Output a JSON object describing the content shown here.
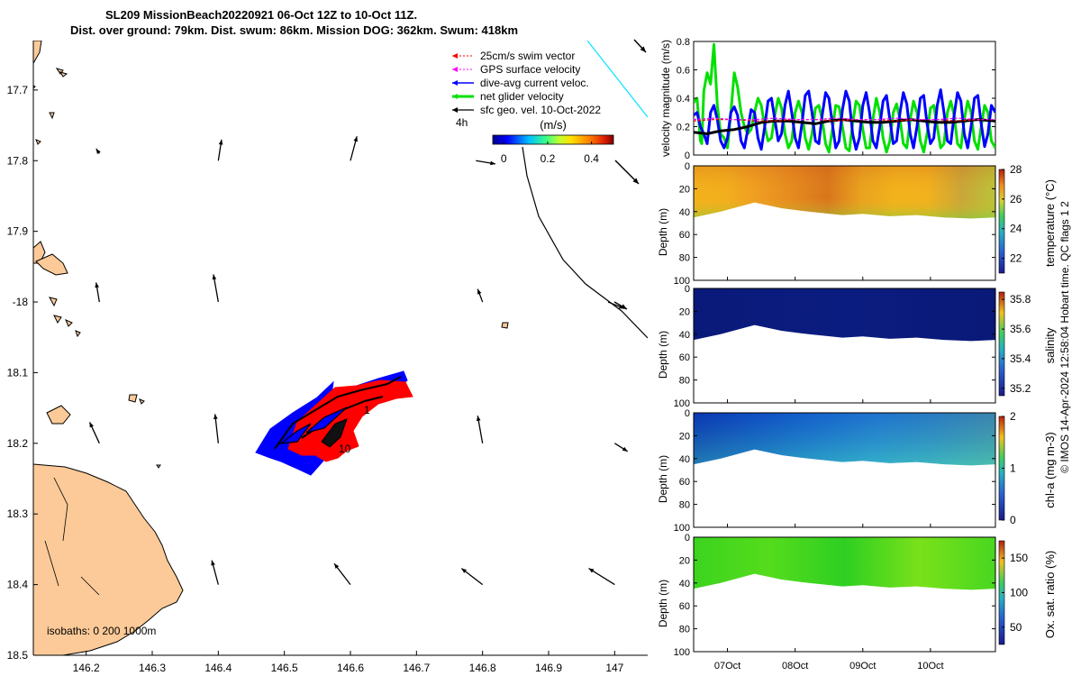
{
  "header": {
    "line1": "SL209 MissionBeach20220921 06-Oct 12Z to 10-Oct 11Z.",
    "line2": "Dist. over ground: 79km. Dist. swum: 86km. Mission DOG: 362km. Swum: 418km"
  },
  "footer_note": "© IMOS 14-Apr-2024 12:58:04 Hobart time. QC flags 1  2",
  "colors": {
    "land": "#fbca98",
    "swim_vector": "#ff0000",
    "gps_velocity": "#ff00ff",
    "dive_avg": "#0000ff",
    "net_velocity": "#00e000",
    "sfc_geo": "#000000",
    "cyan_line": "#00e5ff"
  },
  "chart_data": [
    {
      "type": "scatter",
      "panel": "track_map",
      "xlim": [
        146.12,
        147.05
      ],
      "ylim": [
        18.5,
        17.63
      ],
      "xticks": [
        146.2,
        146.3,
        146.4,
        146.5,
        146.6,
        146.7,
        146.8,
        146.9,
        147
      ],
      "xtick_labels": [
        "146.2",
        "146.3",
        "146.4",
        "146.5",
        "146.6",
        "146.7",
        "146.8",
        "146.9",
        "147"
      ],
      "yticks": [
        17.7,
        17.8,
        17.9,
        18.0,
        18.1,
        18.2,
        18.3,
        18.4,
        18.5
      ],
      "ytick_labels": [
        "17.7",
        "17.8",
        "17.9",
        "-18",
        "18.1",
        "18.2",
        "18.3",
        "18.4",
        "18.5"
      ],
      "legend": {
        "placement": "top-right",
        "entries": [
          "25cm/s swim vector",
          "GPS surface velocity",
          "dive-avg current veloc.",
          "net glider velocity",
          "sfc geo. vel. 10-Oct-2022"
        ]
      },
      "time_label": "4h",
      "colorbar": {
        "label": "(m/s)",
        "ticks": [
          0,
          0.2,
          0.4
        ],
        "tick_labels": [
          "0",
          "0.2",
          "0.4"
        ],
        "range": [
          -0.05,
          0.5
        ]
      },
      "isobaths_label": "isobaths: 0   200  1000m",
      "track_day_labels": [
        "1",
        "10"
      ],
      "geo_vectors": [
        {
          "lon": 146.22,
          "lat": 17.79,
          "u": -0.02,
          "v": 0.03
        },
        {
          "lon": 146.4,
          "lat": 17.8,
          "u": 0.02,
          "v": 0.13
        },
        {
          "lon": 146.6,
          "lat": 17.8,
          "u": 0.04,
          "v": 0.15
        },
        {
          "lon": 146.79,
          "lat": 17.8,
          "u": 0.12,
          "v": -0.02
        },
        {
          "lon": 146.22,
          "lat": 18.0,
          "u": -0.02,
          "v": 0.12
        },
        {
          "lon": 146.4,
          "lat": 18.0,
          "u": -0.03,
          "v": 0.17
        },
        {
          "lon": 146.8,
          "lat": 18.0,
          "u": -0.03,
          "v": 0.08
        },
        {
          "lon": 146.99,
          "lat": 18.0,
          "u": 0.1,
          "v": -0.04
        },
        {
          "lon": 146.22,
          "lat": 18.2,
          "u": -0.06,
          "v": 0.13
        },
        {
          "lon": 146.4,
          "lat": 18.2,
          "u": -0.02,
          "v": 0.18
        },
        {
          "lon": 146.8,
          "lat": 18.2,
          "u": -0.03,
          "v": 0.17
        },
        {
          "lon": 147.0,
          "lat": 18.2,
          "u": 0.08,
          "v": -0.05
        },
        {
          "lon": 146.4,
          "lat": 18.4,
          "u": -0.04,
          "v": 0.15
        },
        {
          "lon": 146.6,
          "lat": 18.4,
          "u": -0.1,
          "v": 0.13
        },
        {
          "lon": 146.8,
          "lat": 18.4,
          "u": -0.13,
          "v": 0.1
        },
        {
          "lon": 147.0,
          "lat": 18.4,
          "u": -0.16,
          "v": 0.1
        }
      ]
    },
    {
      "type": "line",
      "panel": "velocity",
      "ylabel": "velocity magnitude (m/s)",
      "ylim": [
        0,
        0.8
      ],
      "yticks": [
        0,
        0.2,
        0.4,
        0.6,
        0.8
      ],
      "ytick_labels": [
        "0",
        "0.2",
        "0.4",
        "0.6",
        "0.8"
      ],
      "xlim": [
        6.5,
        10.96
      ],
      "series": [
        {
          "color": "#00e000",
          "x": [
            6.5,
            6.55,
            6.6,
            6.62,
            6.65,
            6.7,
            6.75,
            6.8,
            6.85,
            6.9,
            6.95,
            7.0,
            7.05,
            7.1,
            7.15,
            7.2,
            7.25,
            7.3,
            7.35,
            7.4,
            7.45,
            7.5,
            7.55,
            7.6,
            7.65,
            7.7,
            7.75,
            7.8,
            7.85,
            7.9,
            7.95,
            8.0,
            8.05,
            8.1,
            8.15,
            8.2,
            8.25,
            8.3,
            8.35,
            8.4,
            8.45,
            8.5,
            8.55,
            8.6,
            8.65,
            8.7,
            8.75,
            8.8,
            8.85,
            8.9,
            8.95,
            9.0,
            9.05,
            9.1,
            9.15,
            9.2,
            9.25,
            9.3,
            9.35,
            9.4,
            9.45,
            9.5,
            9.55,
            9.6,
            9.65,
            9.7,
            9.75,
            9.8,
            9.85,
            9.9,
            9.95,
            10.0,
            10.05,
            10.1,
            10.15,
            10.2,
            10.25,
            10.3,
            10.35,
            10.4,
            10.45,
            10.5,
            10.55,
            10.6,
            10.65,
            10.7,
            10.75,
            10.8,
            10.85,
            10.9,
            10.96
          ],
          "y": [
            0.37,
            0.4,
            0.1,
            0.08,
            0.45,
            0.58,
            0.5,
            0.78,
            0.35,
            0.15,
            0.12,
            0.05,
            0.3,
            0.58,
            0.48,
            0.3,
            0.2,
            0.15,
            0.18,
            0.3,
            0.4,
            0.35,
            0.2,
            0.1,
            0.12,
            0.28,
            0.4,
            0.33,
            0.15,
            0.05,
            0.1,
            0.3,
            0.38,
            0.3,
            0.12,
            0.04,
            0.15,
            0.33,
            0.35,
            0.25,
            0.08,
            0.02,
            0.18,
            0.35,
            0.34,
            0.2,
            0.05,
            0.03,
            0.22,
            0.38,
            0.35,
            0.18,
            0.05,
            0.05,
            0.25,
            0.4,
            0.3,
            0.12,
            0.02,
            0.1,
            0.3,
            0.36,
            0.25,
            0.08,
            0.05,
            0.25,
            0.38,
            0.3,
            0.1,
            0.02,
            0.15,
            0.33,
            0.35,
            0.2,
            0.05,
            0.08,
            0.3,
            0.38,
            0.28,
            0.08,
            0.05,
            0.25,
            0.38,
            0.3,
            0.1,
            0.04,
            0.2,
            0.35,
            0.3,
            0.1,
            0.05
          ]
        },
        {
          "color": "#0000ff",
          "x": [
            6.5,
            6.55,
            6.6,
            6.65,
            6.7,
            6.75,
            6.8,
            6.85,
            6.9,
            6.95,
            7.0,
            7.05,
            7.1,
            7.15,
            7.2,
            7.25,
            7.3,
            7.35,
            7.4,
            7.45,
            7.5,
            7.55,
            7.6,
            7.65,
            7.7,
            7.75,
            7.8,
            7.85,
            7.9,
            7.95,
            8.0,
            8.05,
            8.1,
            8.15,
            8.2,
            8.25,
            8.3,
            8.35,
            8.4,
            8.45,
            8.5,
            8.55,
            8.6,
            8.65,
            8.7,
            8.75,
            8.8,
            8.85,
            8.9,
            8.95,
            9.0,
            9.05,
            9.1,
            9.15,
            9.2,
            9.25,
            9.3,
            9.35,
            9.4,
            9.45,
            9.5,
            9.55,
            9.6,
            9.65,
            9.7,
            9.75,
            9.8,
            9.85,
            9.9,
            9.95,
            10.0,
            10.05,
            10.1,
            10.15,
            10.2,
            10.25,
            10.3,
            10.35,
            10.4,
            10.45,
            10.5,
            10.55,
            10.6,
            10.65,
            10.7,
            10.75,
            10.8,
            10.85,
            10.9,
            10.96
          ],
          "y": [
            0.28,
            0.3,
            0.2,
            0.15,
            0.08,
            0.3,
            0.35,
            0.25,
            0.1,
            0.05,
            0.12,
            0.3,
            0.34,
            0.28,
            0.1,
            0.05,
            0.18,
            0.32,
            0.3,
            0.12,
            0.04,
            0.2,
            0.38,
            0.4,
            0.25,
            0.1,
            0.15,
            0.35,
            0.45,
            0.3,
            0.12,
            0.05,
            0.22,
            0.42,
            0.45,
            0.3,
            0.1,
            0.08,
            0.28,
            0.44,
            0.4,
            0.22,
            0.05,
            0.1,
            0.32,
            0.45,
            0.38,
            0.15,
            0.04,
            0.12,
            0.35,
            0.44,
            0.3,
            0.1,
            0.05,
            0.2,
            0.38,
            0.42,
            0.25,
            0.08,
            0.1,
            0.3,
            0.44,
            0.36,
            0.15,
            0.05,
            0.2,
            0.4,
            0.42,
            0.22,
            0.08,
            0.12,
            0.35,
            0.46,
            0.3,
            0.1,
            0.08,
            0.28,
            0.44,
            0.38,
            0.15,
            0.05,
            0.2,
            0.4,
            0.42,
            0.22,
            0.06,
            0.15,
            0.35,
            0.3
          ]
        },
        {
          "color": "#000000",
          "x": [
            6.5,
            6.7,
            6.9,
            7.1,
            7.3,
            7.5,
            7.7,
            7.9,
            8.1,
            8.3,
            8.5,
            8.7,
            8.9,
            9.1,
            9.3,
            9.5,
            9.7,
            9.9,
            10.1,
            10.3,
            10.5,
            10.7,
            10.96
          ],
          "y": [
            0.16,
            0.15,
            0.17,
            0.18,
            0.2,
            0.23,
            0.24,
            0.24,
            0.23,
            0.22,
            0.24,
            0.25,
            0.24,
            0.23,
            0.23,
            0.24,
            0.25,
            0.24,
            0.23,
            0.23,
            0.24,
            0.25,
            0.24
          ]
        },
        {
          "color": "#ff0000",
          "x": [
            6.5,
            6.8,
            7.1,
            7.4,
            7.7,
            8.0,
            8.3,
            8.6,
            8.9,
            9.2,
            9.5,
            9.8,
            10.1,
            10.4,
            10.7,
            10.96
          ],
          "y": [
            0.24,
            0.25,
            0.25,
            0.24,
            0.24,
            0.25,
            0.25,
            0.24,
            0.25,
            0.25,
            0.24,
            0.25,
            0.25,
            0.24,
            0.25,
            0.25
          ]
        },
        {
          "color": "#ff00ff",
          "x": [
            6.5,
            6.8,
            7.1,
            7.4,
            7.7,
            8.0,
            8.3,
            8.6,
            8.9,
            9.2,
            9.5,
            9.8,
            10.1,
            10.4,
            10.7,
            10.96
          ],
          "y": [
            0.25,
            0.26,
            0.25,
            0.25,
            0.26,
            0.25,
            0.25,
            0.26,
            0.25,
            0.25,
            0.26,
            0.25,
            0.25,
            0.26,
            0.25,
            0.25
          ]
        }
      ]
    },
    {
      "type": "heatmap",
      "panel": "temperature",
      "ylabel": "Depth (m)",
      "ylim": [
        100,
        0
      ],
      "yticks": [
        0,
        20,
        40,
        60,
        80,
        100
      ],
      "colorbar_label": "temperature (°C)",
      "clim": [
        21,
        28
      ],
      "cticks": [
        22,
        24,
        26,
        28
      ],
      "bottom_depth": [
        [
          6.5,
          45
        ],
        [
          6.9,
          40
        ],
        [
          7.4,
          32
        ],
        [
          7.8,
          37
        ],
        [
          8.2,
          40
        ],
        [
          8.7,
          43
        ],
        [
          9.0,
          42
        ],
        [
          9.4,
          44
        ],
        [
          9.8,
          43
        ],
        [
          10.2,
          45
        ],
        [
          10.6,
          46
        ],
        [
          10.96,
          45
        ]
      ],
      "colors": [
        "#f2b21c",
        "#f3ae1d",
        "#ee9b22",
        "#e4881f",
        "#d8741c",
        "#e9a21f",
        "#f2b31c",
        "#f2b11e",
        "#c8a63a",
        "#b8c53a"
      ]
    },
    {
      "type": "heatmap",
      "panel": "salinity",
      "ylabel": "Depth (m)",
      "ylim": [
        100,
        0
      ],
      "yticks": [
        0,
        20,
        40,
        60,
        80,
        100
      ],
      "colorbar_label": "salinity",
      "clim": [
        35.15,
        35.85
      ],
      "cticks": [
        35.2,
        35.4,
        35.6,
        35.8
      ],
      "bottom_depth": [
        [
          6.5,
          45
        ],
        [
          6.9,
          40
        ],
        [
          7.4,
          32
        ],
        [
          7.8,
          37
        ],
        [
          8.2,
          40
        ],
        [
          8.7,
          43
        ],
        [
          9.0,
          42
        ],
        [
          9.4,
          44
        ],
        [
          9.8,
          43
        ],
        [
          10.2,
          45
        ],
        [
          10.6,
          46
        ],
        [
          10.96,
          45
        ]
      ],
      "colors": [
        "#0a1a7a",
        "#0b1c80",
        "#0a1978"
      ]
    },
    {
      "type": "heatmap",
      "panel": "chla",
      "ylabel": "Depth (m)",
      "ylim": [
        100,
        0
      ],
      "yticks": [
        0,
        20,
        40,
        60,
        80,
        100
      ],
      "colorbar_label": "chl-a (mg m-3)",
      "clim": [
        0,
        2
      ],
      "cticks": [
        0,
        1,
        2
      ],
      "bottom_depth": [
        [
          6.5,
          45
        ],
        [
          6.9,
          40
        ],
        [
          7.4,
          32
        ],
        [
          7.8,
          37
        ],
        [
          8.2,
          40
        ],
        [
          8.7,
          43
        ],
        [
          9.0,
          42
        ],
        [
          9.4,
          44
        ],
        [
          9.8,
          43
        ],
        [
          10.2,
          45
        ],
        [
          10.6,
          46
        ],
        [
          10.96,
          45
        ]
      ],
      "colors": [
        "#0b3fc0",
        "#1060d8",
        "#1a80e6",
        "#2a9bea",
        "#3aa7d8",
        "#54b4b8"
      ]
    },
    {
      "type": "heatmap",
      "panel": "oxygen",
      "ylabel": "Depth (m)",
      "ylim": [
        100,
        0
      ],
      "yticks": [
        0,
        20,
        40,
        60,
        80,
        100
      ],
      "colorbar_label": "Ox. sat. ratio (%)",
      "clim": [
        25,
        175
      ],
      "cticks": [
        50,
        100,
        150
      ],
      "bottom_depth": [
        [
          6.5,
          45
        ],
        [
          6.9,
          40
        ],
        [
          7.4,
          32
        ],
        [
          7.8,
          37
        ],
        [
          8.2,
          40
        ],
        [
          8.7,
          43
        ],
        [
          9.0,
          42
        ],
        [
          9.4,
          44
        ],
        [
          9.8,
          43
        ],
        [
          10.2,
          45
        ],
        [
          10.6,
          46
        ],
        [
          10.96,
          45
        ]
      ],
      "colors": [
        "#3cd41e",
        "#55dc1c",
        "#2ecf22",
        "#7ae11a",
        "#48d720"
      ]
    },
    {
      "type": "line",
      "panel": "time_axis",
      "xticks": [
        7.0,
        8.0,
        9.0,
        10.0
      ],
      "xtick_labels": [
        "07Oct",
        "08Oct",
        "09Oct",
        "10Oct"
      ]
    }
  ]
}
